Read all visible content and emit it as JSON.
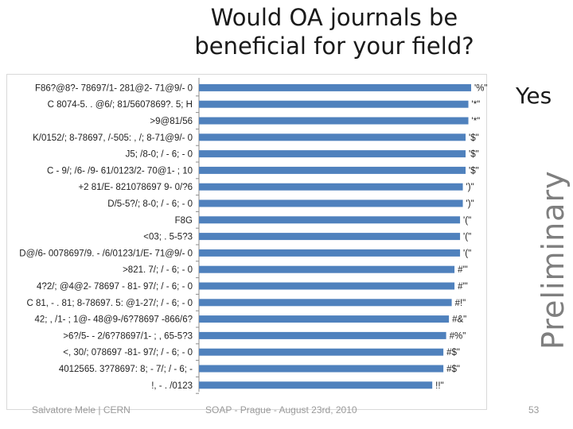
{
  "slide": {
    "title": "Would OA journals be\nbeneficial for your field?",
    "yes_label": "Yes",
    "watermark": "Preliminary",
    "footer_left": "Salvatore Mele | CERN",
    "footer_center": "SOAP - Prague - August 23rd, 2010",
    "page_number": "53"
  },
  "chart_data": {
    "type": "bar",
    "orientation": "horizontal",
    "title": "",
    "xlabel": "",
    "ylabel": "",
    "xlim": [
      0,
      100
    ],
    "grid": false,
    "legend": "none",
    "bar_color": "#4f81bd",
    "categories": [
      "F86?@8?- 78697/1- 281@2- 71@9/- 0",
      "C 8074-5. . @6/; 81/5607869?. 5; H",
      ">9@81/56",
      "K/0152/; 8-78697, /-505: , /; 8-71@9/- 0",
      "J5; /8-0; / - 6; - 0",
      "C - 9/; /6- /9- 61/0123/2- 70@1- ; 10",
      "+2 81/E- 821078697 9- 0/?6",
      "D/5-5?/; 8-0; / - 6; - 0",
      "F8G",
      "<03; . 5-5?3",
      "D@/6- 0078697/9. - /6/0123/1/E- 71@9/- 0",
      ">821. 7/; / - 6; - 0",
      "4?2/; @4@2- 78697 - 81- 97/; / - 6; - 0",
      "C 81, - . 81; 8-78697. 5: @1-27/; / - 6; - 0",
      "42; , /1- ; 1@- 48@9-/6?78697 -866/6?",
      ">6?/5- - 2/6?78697/1- ; , 65-5?3",
      "<, 30/; 078697 -81- 97/; / - 6; - 0",
      "4012565. 3?78697: 8; - 7/; / - 6; -",
      "!, - . /0123"
    ],
    "values": [
      98,
      97,
      97,
      96,
      96,
      96,
      95,
      95,
      94,
      94,
      94,
      92,
      92,
      91,
      90,
      89,
      88,
      88,
      84
    ],
    "data_labels": [
      "'%\"",
      "'*\"",
      "'*\"",
      "'$\"",
      "'$\"",
      "'$\"",
      "')\"",
      "')\"",
      "'(\"",
      "'(\"",
      "'(\"",
      "#'\"",
      "#'\"",
      "#!\"",
      "#&\"",
      "#%\"",
      "#$\"",
      "#$\"",
      "!!\""
    ]
  }
}
